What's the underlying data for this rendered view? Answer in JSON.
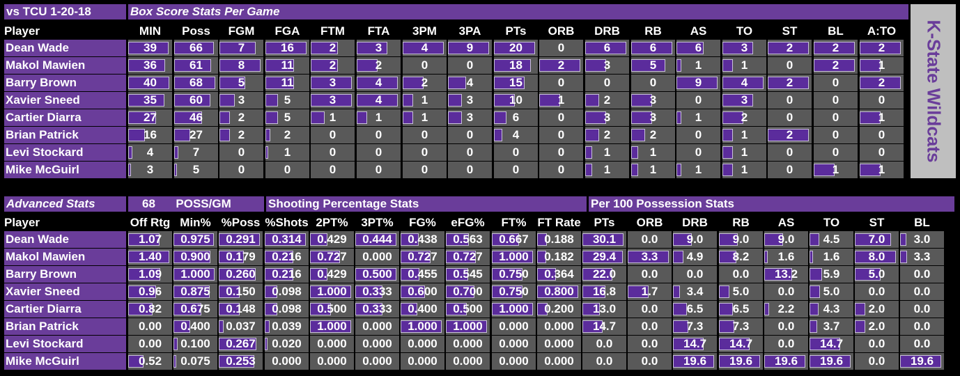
{
  "box": {
    "title_left": "vs TCU 1-20-18",
    "title_right": "Box Score Stats Per Game",
    "headers": [
      "Player",
      "MIN",
      "Poss",
      "FGM",
      "FGA",
      "FTM",
      "FTA",
      "3PM",
      "3PA",
      "PTs",
      "ORB",
      "DRB",
      "RB",
      "AS",
      "TO",
      "ST",
      "BL",
      "A:TO"
    ],
    "rows": [
      {
        "player": "Dean Wade",
        "values": [
          "39",
          "66",
          "7",
          "16",
          "2",
          "3",
          "4",
          "9",
          "20",
          "0",
          "6",
          "6",
          "6",
          "3",
          "2",
          "2",
          "2"
        ]
      },
      {
        "player": "Makol Mawien",
        "values": [
          "36",
          "61",
          "8",
          "11",
          "2",
          "2",
          "0",
          "0",
          "18",
          "2",
          "3",
          "5",
          "1",
          "1",
          "0",
          "2",
          "1"
        ]
      },
      {
        "player": "Barry Brown",
        "values": [
          "40",
          "68",
          "5",
          "11",
          "3",
          "4",
          "2",
          "4",
          "15",
          "0",
          "0",
          "0",
          "9",
          "4",
          "2",
          "0",
          "2"
        ]
      },
      {
        "player": "Xavier Sneed",
        "values": [
          "35",
          "60",
          "3",
          "5",
          "3",
          "4",
          "1",
          "3",
          "10",
          "1",
          "2",
          "3",
          "0",
          "3",
          "0",
          "0",
          "0"
        ]
      },
      {
        "player": "Cartier Diarra",
        "values": [
          "27",
          "46",
          "2",
          "5",
          "1",
          "1",
          "1",
          "3",
          "6",
          "0",
          "3",
          "3",
          "1",
          "2",
          "0",
          "0",
          "1"
        ]
      },
      {
        "player": "Brian Patrick",
        "values": [
          "16",
          "27",
          "2",
          "2",
          "0",
          "0",
          "0",
          "0",
          "4",
          "0",
          "2",
          "2",
          "0",
          "1",
          "2",
          "0",
          "0"
        ]
      },
      {
        "player": "Levi Stockard",
        "values": [
          "4",
          "7",
          "0",
          "1",
          "0",
          "0",
          "0",
          "0",
          "0",
          "0",
          "1",
          "1",
          "0",
          "1",
          "0",
          "0",
          "0"
        ]
      },
      {
        "player": "Mike McGuirl",
        "values": [
          "3",
          "5",
          "0",
          "0",
          "0",
          "0",
          "0",
          "0",
          "0",
          "0",
          "1",
          "1",
          "1",
          "1",
          "0",
          "1",
          "1"
        ]
      }
    ],
    "bars": [
      [
        0.975,
        0.971,
        0.875,
        1.0,
        0.667,
        0.75,
        1.0,
        1.0,
        1.0,
        0,
        1.0,
        1.0,
        0.667,
        0.75,
        1.0,
        1.0,
        1.0
      ],
      [
        0.9,
        0.897,
        1.0,
        0.688,
        0.667,
        0.5,
        0,
        0,
        0.9,
        1.0,
        0.5,
        0.833,
        0.111,
        0.25,
        0,
        1.0,
        0.5
      ],
      [
        1.0,
        1.0,
        0.625,
        0.688,
        1.0,
        1.0,
        0.5,
        0.444,
        0.75,
        0,
        0,
        0,
        1.0,
        1.0,
        1.0,
        0,
        1.0
      ],
      [
        0.875,
        0.882,
        0.375,
        0.313,
        1.0,
        1.0,
        0.25,
        0.333,
        0.5,
        0.5,
        0.333,
        0.5,
        0,
        0.75,
        0,
        0,
        0
      ],
      [
        0.675,
        0.676,
        0.25,
        0.313,
        0.333,
        0.25,
        0.25,
        0.333,
        0.3,
        0,
        0.5,
        0.5,
        0.111,
        0.5,
        0,
        0,
        0.5
      ],
      [
        0.4,
        0.397,
        0.25,
        0.125,
        0,
        0,
        0,
        0,
        0.2,
        0,
        0.333,
        0.333,
        0,
        0.25,
        1.0,
        0,
        0
      ],
      [
        0.1,
        0.103,
        0,
        0.063,
        0,
        0,
        0,
        0,
        0,
        0,
        0.167,
        0.167,
        0,
        0.25,
        0,
        0,
        0
      ],
      [
        0.075,
        0.074,
        0,
        0,
        0,
        0,
        0,
        0,
        0,
        0,
        0.167,
        0.167,
        0.111,
        0.25,
        0,
        0.5,
        0.5
      ]
    ]
  },
  "side_label": "K-State Wildcats",
  "adv": {
    "title": "Advanced Stats",
    "poss_value": "68",
    "poss_label": "POSS/GM",
    "shooting_title": "Shooting Percentage Stats",
    "per100_title": "Per 100 Possession Stats",
    "headers": [
      "Player",
      "Off Rtg",
      "Min%",
      "%Poss",
      "%Shots",
      "2PT%",
      "3PT%",
      "FG%",
      "eFG%",
      "FT%",
      "FT Rate",
      "PTs",
      "ORB",
      "DRB",
      "RB",
      "AS",
      "TO",
      "ST",
      "BL"
    ],
    "rows": [
      {
        "player": "Dean Wade",
        "values": [
          "1.07",
          "0.975",
          "0.291",
          "0.314",
          "0.429",
          "0.444",
          "0.438",
          "0.563",
          "0.667",
          "0.188",
          "30.1",
          "0.0",
          "9.0",
          "9.0",
          "9.0",
          "4.5",
          "7.0",
          "3.0"
        ]
      },
      {
        "player": "Makol Mawien",
        "values": [
          "1.40",
          "0.900",
          "0.179",
          "0.216",
          "0.727",
          "0.000",
          "0.727",
          "0.727",
          "1.000",
          "0.182",
          "29.4",
          "3.3",
          "4.9",
          "8.2",
          "1.6",
          "1.6",
          "8.0",
          "3.3"
        ]
      },
      {
        "player": "Barry Brown",
        "values": [
          "1.09",
          "1.000",
          "0.260",
          "0.216",
          "0.429",
          "0.500",
          "0.455",
          "0.545",
          "0.750",
          "0.364",
          "22.0",
          "0.0",
          "0.0",
          "0.0",
          "13.2",
          "5.9",
          "5.0",
          "0.0"
        ]
      },
      {
        "player": "Xavier Sneed",
        "values": [
          "0.96",
          "0.875",
          "0.150",
          "0.098",
          "1.000",
          "0.333",
          "0.600",
          "0.700",
          "0.750",
          "0.800",
          "16.8",
          "1.7",
          "3.4",
          "5.0",
          "0.0",
          "5.0",
          "0.0",
          "0.0"
        ]
      },
      {
        "player": "Cartier Diarra",
        "values": [
          "0.82",
          "0.675",
          "0.148",
          "0.098",
          "0.500",
          "0.333",
          "0.400",
          "0.500",
          "1.000",
          "0.200",
          "13.0",
          "0.0",
          "6.5",
          "6.5",
          "2.2",
          "4.3",
          "2.0",
          "0.0"
        ]
      },
      {
        "player": "Brian Patrick",
        "values": [
          "0.00",
          "0.400",
          "0.037",
          "0.039",
          "1.000",
          "0.000",
          "1.000",
          "1.000",
          "0.000",
          "0.000",
          "14.7",
          "0.0",
          "7.3",
          "7.3",
          "0.0",
          "3.7",
          "2.0",
          "0.0"
        ]
      },
      {
        "player": "Levi Stockard",
        "values": [
          "0.00",
          "0.100",
          "0.267",
          "0.020",
          "0.000",
          "0.000",
          "0.000",
          "0.000",
          "0.000",
          "0.000",
          "0.0",
          "0.0",
          "14.7",
          "14.7",
          "0.0",
          "14.7",
          "0.0",
          "0.0"
        ]
      },
      {
        "player": "Mike McGuirl",
        "values": [
          "0.52",
          "0.075",
          "0.253",
          "0.000",
          "0.000",
          "0.000",
          "0.000",
          "0.000",
          "0.000",
          "0.000",
          "0.0",
          "0.0",
          "19.6",
          "19.6",
          "19.6",
          "19.6",
          "0.0",
          "19.6"
        ]
      }
    ],
    "bars": [
      [
        0.764,
        0.975,
        1.0,
        1.0,
        0.429,
        1.0,
        0.438,
        0.563,
        0.667,
        0.235,
        1.0,
        0,
        0.459,
        0.459,
        0.459,
        0.23,
        0.875,
        0.153
      ],
      [
        1.0,
        0.9,
        0.615,
        0.688,
        0.727,
        0,
        0.727,
        0.727,
        1.0,
        0.228,
        0.977,
        1.0,
        0.25,
        0.418,
        0.082,
        0.082,
        1.0,
        0.168
      ],
      [
        0.779,
        1.0,
        0.893,
        0.688,
        0.429,
        1.0,
        0.455,
        0.545,
        0.75,
        0.455,
        0.731,
        0,
        0,
        0,
        0.673,
        0.301,
        0.625,
        0
      ],
      [
        0.686,
        0.875,
        0.515,
        0.312,
        1.0,
        0.667,
        0.6,
        0.7,
        0.75,
        1.0,
        0.558,
        0.515,
        0.173,
        0.255,
        0,
        0.255,
        0,
        0
      ],
      [
        0.586,
        0.675,
        0.509,
        0.312,
        0.5,
        0.667,
        0.4,
        0.5,
        1.0,
        0.25,
        0.432,
        0,
        0.332,
        0.332,
        0.112,
        0.219,
        0.25,
        0
      ],
      [
        0,
        0.4,
        0.127,
        0.124,
        1.0,
        0,
        1.0,
        1.0,
        0,
        0,
        0.488,
        0,
        0.372,
        0.372,
        0,
        0.189,
        0.25,
        0
      ],
      [
        0,
        0.1,
        0.918,
        0.064,
        0,
        0,
        0,
        0,
        0,
        0,
        0,
        0,
        0.75,
        0.75,
        0,
        0.75,
        0,
        0
      ],
      [
        0.371,
        0.075,
        0.869,
        0,
        0,
        0,
        0,
        0,
        0,
        0,
        0,
        0,
        1.0,
        1.0,
        1.0,
        1.0,
        0,
        1.0
      ]
    ]
  }
}
